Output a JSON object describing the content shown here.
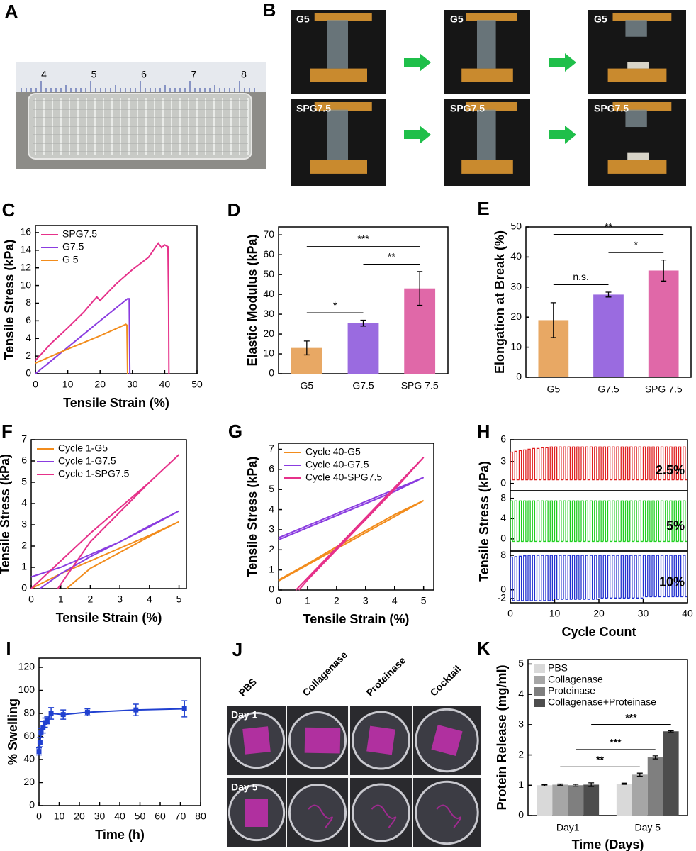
{
  "figure": {
    "panel_a": {
      "panel": "A",
      "ruler": [
        "4",
        "5",
        "6",
        "7",
        "8"
      ]
    },
    "panel_b": {
      "panel": "B",
      "labels": [
        "G5",
        "G5",
        "G5",
        "SPG7.5",
        "SPG7.5",
        "SPG7.5"
      ]
    },
    "panel_j": {
      "panel": "J",
      "columns": [
        "PBS",
        "Collagenase",
        "Proteinase",
        "Cocktail"
      ],
      "rows": [
        "Day 1",
        "Day 5"
      ]
    }
  },
  "chart_data": [
    {
      "panel": "C",
      "type": "line",
      "xlabel": "Tensile Strain (%)",
      "ylabel": "Tensile Stress (kPa)",
      "xlim": [
        0,
        50
      ],
      "xticks": [
        0,
        10,
        20,
        30,
        40,
        50
      ],
      "ylim": [
        0,
        16.8
      ],
      "yticks": [
        0,
        2,
        4,
        6,
        8,
        10,
        12,
        14,
        16
      ],
      "legend": "upper left",
      "series": [
        {
          "name": "SPG7.5",
          "color": "#e6318a",
          "x": [
            0,
            5,
            10,
            15,
            18,
            19,
            20,
            25,
            30,
            35,
            38,
            39,
            40,
            41,
            41.2,
            41.3
          ],
          "values": [
            1.5,
            3.5,
            5.2,
            7,
            8.3,
            8.7,
            8.3,
            10.2,
            11.8,
            13.2,
            14.8,
            14.3,
            14.6,
            14.4,
            8,
            0
          ]
        },
        {
          "name": "G7.5",
          "color": "#8a3ce0",
          "x": [
            0,
            10,
            20,
            28.5,
            29,
            29.2
          ],
          "values": [
            0,
            3,
            6,
            8.5,
            8.5,
            0
          ]
        },
        {
          "name": "G 5",
          "color": "#f28c1c",
          "x": [
            0,
            10,
            20,
            28,
            28.3,
            28.5
          ],
          "values": [
            1.2,
            2.8,
            4.3,
            5.6,
            5.5,
            0
          ]
        }
      ]
    },
    {
      "panel": "D",
      "type": "bar",
      "ylabel": "Elastic Modulus (kPa)",
      "categories": [
        "G5",
        "G7.5",
        "SPG 7.5"
      ],
      "values": [
        13,
        25.5,
        43
      ],
      "errors": [
        3.5,
        1.5,
        8.5
      ],
      "colors": [
        "#e8a864",
        "#9a6be0",
        "#e068a8"
      ],
      "ylim": [
        0,
        74
      ],
      "yticks": [
        0,
        10,
        20,
        30,
        40,
        50,
        60,
        70
      ],
      "significance": [
        {
          "label": "*",
          "groups": [
            0,
            1
          ]
        },
        {
          "label": "**",
          "groups": [
            1,
            2
          ]
        },
        {
          "label": "***",
          "groups": [
            0,
            2
          ]
        }
      ]
    },
    {
      "panel": "E",
      "type": "bar",
      "ylabel": "Elongation at Break (%)",
      "categories": [
        "G5",
        "G7.5",
        "SPG 7.5"
      ],
      "values": [
        19,
        27.5,
        35.5
      ],
      "errors": [
        5.8,
        0.8,
        3.5
      ],
      "colors": [
        "#e8a864",
        "#9a6be0",
        "#e068a8"
      ],
      "ylim": [
        0,
        50
      ],
      "yticks": [
        0,
        10,
        20,
        30,
        40,
        50
      ],
      "significance": [
        {
          "label": "n.s.",
          "groups": [
            0,
            1
          ]
        },
        {
          "label": "*",
          "groups": [
            1,
            2
          ]
        },
        {
          "label": "**",
          "groups": [
            0,
            2
          ]
        }
      ]
    },
    {
      "panel": "F",
      "type": "line",
      "xlabel": "Tensile Strain (%)",
      "ylabel": "Tensile Stress (kPa)",
      "xlim": [
        0,
        5.25
      ],
      "xticks": [
        0,
        1,
        2,
        3,
        4,
        5
      ],
      "ylim": [
        0,
        7
      ],
      "yticks": [
        0,
        1,
        2,
        3,
        4,
        5,
        6,
        7
      ],
      "legend": "upper left",
      "series": [
        {
          "name": "Cycle 1-G5",
          "color": "#f28c1c",
          "x": [
            0,
            1,
            2,
            3,
            4,
            5,
            4,
            3,
            2,
            1.2
          ],
          "values": [
            0,
            0.7,
            1.3,
            1.9,
            2.5,
            3.15,
            2.45,
            1.7,
            0.95,
            0
          ]
        },
        {
          "name": "Cycle 1-G7.5",
          "color": "#8a3ce0",
          "x": [
            0,
            1,
            2,
            3,
            4,
            5,
            4,
            3,
            2,
            1,
            0.3
          ],
          "values": [
            0.55,
            1,
            1.6,
            2.2,
            2.9,
            3.65,
            2.95,
            2.2,
            1.5,
            0.7,
            0
          ]
        },
        {
          "name": "Cycle 1-SPG7.5",
          "color": "#e6318a",
          "x": [
            0,
            1,
            2,
            3,
            4,
            5,
            4,
            3,
            2,
            0.9
          ],
          "values": [
            0,
            1.3,
            2.6,
            3.8,
            5,
            6.3,
            5,
            3.6,
            2.2,
            0
          ]
        }
      ]
    },
    {
      "panel": "G",
      "type": "line",
      "xlabel": "Tensile Strain (%)",
      "ylabel": "Tensile Stress (kPa)",
      "xlim": [
        0,
        5.35
      ],
      "xticks": [
        0,
        1,
        2,
        3,
        4,
        5
      ],
      "ylim": [
        0,
        7.3
      ],
      "yticks": [
        0,
        1,
        2,
        3,
        4,
        5,
        6,
        7
      ],
      "legend": "upper left",
      "series": [
        {
          "name": "Cycle 40-G5",
          "color": "#f28c1c",
          "x": [
            0,
            1,
            2,
            3,
            4,
            5,
            4,
            3,
            2,
            1,
            0
          ],
          "values": [
            0.5,
            1.3,
            2.15,
            2.95,
            3.75,
            4.45,
            3.65,
            2.85,
            2.05,
            1.25,
            0.45
          ]
        },
        {
          "name": "Cycle 40-G7.5",
          "color": "#8a3ce0",
          "x": [
            0,
            1,
            2,
            3,
            4,
            5,
            4,
            3,
            2,
            1,
            0
          ],
          "values": [
            2.6,
            3.2,
            3.8,
            4.4,
            5,
            5.6,
            4.9,
            4.3,
            3.7,
            3.1,
            2.5
          ]
        },
        {
          "name": "Cycle 40-SPG7.5",
          "color": "#e6318a",
          "x": [
            0.6,
            1,
            2,
            3,
            4,
            5,
            4,
            3,
            2,
            1,
            0.7
          ],
          "values": [
            0,
            0.6,
            2.1,
            3.6,
            5.1,
            6.6,
            5,
            3.5,
            2,
            0.5,
            0
          ]
        }
      ]
    },
    {
      "panel": "H",
      "type": "cyclic",
      "xlabel": "Cycle Count",
      "ylabel": "Tensile Stress (kPa)",
      "xlim": [
        0,
        40
      ],
      "xticks": [
        0,
        10,
        20,
        30,
        40
      ],
      "subplots": [
        {
          "label": "2.5%",
          "color": "#e02020",
          "ylim": [
            -1,
            6
          ],
          "yticks": [
            0,
            3,
            6
          ],
          "high": [
            4.3,
            4.4,
            4.5,
            4.6,
            4.7,
            4.8,
            4.8,
            4.9,
            4.9,
            5,
            5,
            5,
            5,
            5,
            5,
            5,
            5,
            5,
            5,
            5,
            5,
            5,
            5,
            5,
            5,
            5,
            5,
            5,
            5,
            5,
            5,
            5,
            5,
            5,
            5,
            5,
            5,
            5,
            5,
            5
          ],
          "low": [
            0.5,
            0.5,
            0.5,
            0.5,
            0.5,
            0.5,
            0.5,
            0.5,
            0.5,
            0.5,
            0.5,
            0.5,
            0.5,
            0.5,
            0.5,
            0.5,
            0.5,
            0.5,
            0.5,
            0.5,
            0.5,
            0.5,
            0.5,
            0.5,
            0.5,
            0.5,
            0.5,
            0.5,
            0.5,
            0.5,
            0.5,
            0.5,
            0.5,
            0.5,
            0.5,
            0.5,
            0.5,
            0.5,
            0.5,
            0.5
          ]
        },
        {
          "label": "5%",
          "color": "#20d020",
          "ylim": [
            -2.4,
            9.5
          ],
          "yticks": [
            0,
            4,
            8
          ],
          "high": [
            7.5,
            7.5,
            7.5,
            7.5,
            7.5,
            7.5,
            7.5,
            7.5,
            7.5,
            7.5,
            7.5,
            7.5,
            7.5,
            7.5,
            7.5,
            7.5,
            7.5,
            7.5,
            7.5,
            7.5,
            7.5,
            7.5,
            7.5,
            7.5,
            7.5,
            7.5,
            7.5,
            7.5,
            7.5,
            7.5,
            7.5,
            7.5,
            7.5,
            7.5,
            7.5,
            7.5,
            7.5,
            7.5,
            7.5,
            7.5
          ],
          "low": [
            -0.5,
            -0.5,
            -0.5,
            -0.5,
            -0.5,
            -0.5,
            -0.5,
            -0.5,
            -0.5,
            -0.5,
            -0.5,
            -0.5,
            -0.5,
            -0.5,
            -0.5,
            -0.5,
            -0.5,
            -0.5,
            -0.5,
            -0.5,
            -0.5,
            -0.5,
            -0.5,
            -0.5,
            -0.5,
            -0.5,
            -0.5,
            -0.5,
            -0.5,
            -0.5,
            -0.5,
            -0.5,
            -0.5,
            -0.5,
            -0.5,
            -0.5,
            -0.5,
            -0.5,
            -0.5,
            -0.5
          ]
        },
        {
          "label": "10%",
          "color": "#2030d0",
          "ylim": [
            -3,
            9
          ],
          "yticks": [
            -2,
            0,
            8
          ],
          "high": [
            7.6,
            7.7,
            7.8,
            7.9,
            8,
            8,
            8,
            8,
            8,
            8,
            8,
            8,
            8,
            8,
            8,
            8,
            8,
            8,
            8,
            8,
            8,
            8,
            8,
            8,
            8,
            8,
            8,
            8,
            8,
            8,
            8,
            8,
            8,
            8,
            8,
            8,
            8,
            8,
            8,
            8
          ],
          "low": [
            -2.5,
            -2.5,
            -2.5,
            -2.5,
            -2.5,
            -2.5,
            -2.5,
            -2.5,
            -2.5,
            -2.5,
            -2.2,
            -2.2,
            -2.2,
            -2.2,
            -2.2,
            -2.2,
            -2.2,
            -2.2,
            -2.2,
            -2.2,
            -1.9,
            -1.9,
            -1.9,
            -1.9,
            -1.9,
            -1.9,
            -1.9,
            -1.9,
            -1.9,
            -1.9,
            -1.6,
            -1.6,
            -1.6,
            -1.6,
            -1.6,
            -1.6,
            -1.6,
            -1.6,
            -1.6,
            -1.6
          ]
        }
      ]
    },
    {
      "panel": "I",
      "type": "line",
      "xlabel": "Time (h)",
      "ylabel": "% Swelling",
      "color": "#2040d0",
      "x": [
        0,
        0.5,
        1,
        2,
        3,
        4,
        6,
        12,
        24,
        48,
        72
      ],
      "values": [
        47,
        55,
        63,
        68,
        72,
        74,
        80,
        79,
        81,
        83,
        84
      ],
      "errors": [
        3,
        4,
        4,
        5,
        4,
        3,
        5,
        4,
        3,
        5,
        7
      ],
      "xlim": [
        0,
        80
      ],
      "xticks": [
        0,
        10,
        20,
        30,
        40,
        50,
        60,
        70,
        80
      ],
      "ylim": [
        0,
        128
      ],
      "yticks": [
        0,
        20,
        40,
        60,
        80,
        100,
        120
      ]
    },
    {
      "panel": "K",
      "type": "bar",
      "xlabel": "Time (Days)",
      "ylabel": "Protein Release (mg/ml)",
      "categories": [
        "Day1",
        "Day 5"
      ],
      "legend": "upper left",
      "series": [
        {
          "name": "PBS",
          "color": "#d9d9d9",
          "values": [
            1,
            1.05
          ],
          "errors": [
            0.02,
            0.02
          ]
        },
        {
          "name": "Collagenase",
          "color": "#a6a6a6",
          "values": [
            1.02,
            1.35
          ],
          "errors": [
            0.02,
            0.05
          ]
        },
        {
          "name": "Proteinase",
          "color": "#7f7f7f",
          "values": [
            1,
            1.92
          ],
          "errors": [
            0.03,
            0.05
          ]
        },
        {
          "name": "Collagenase+Proteinase",
          "color": "#4d4d4d",
          "values": [
            1.02,
            2.78
          ],
          "errors": [
            0.06,
            0.02
          ]
        }
      ],
      "ylim": [
        0,
        5.15
      ],
      "yticks": [
        0,
        1,
        2,
        3,
        4,
        5
      ],
      "significance": [
        {
          "label": "**",
          "series": 1
        },
        {
          "label": "***",
          "series": 2
        },
        {
          "label": "***",
          "series": 3
        }
      ]
    }
  ]
}
